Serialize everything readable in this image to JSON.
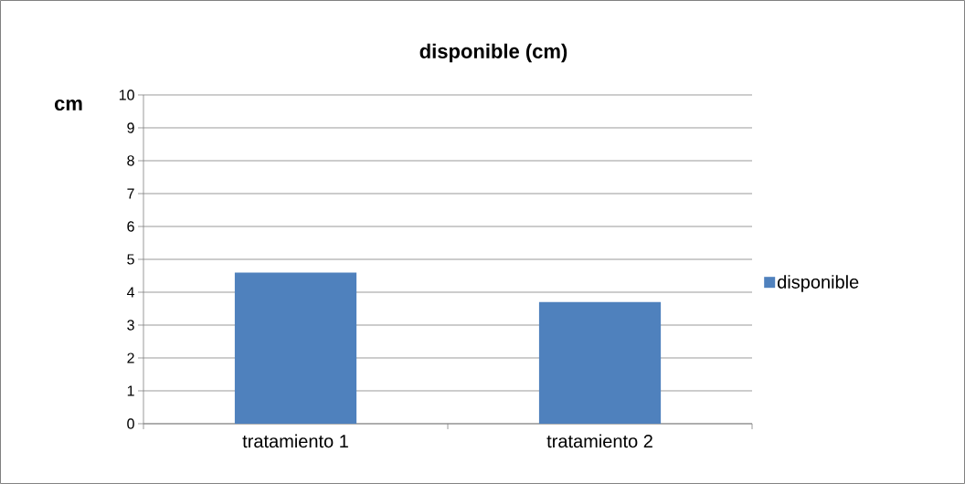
{
  "chart_data": {
    "type": "bar",
    "title": "disponible (cm)",
    "ylabel": "cm",
    "categories": [
      "tratamiento 1",
      "tratamiento 2"
    ],
    "series": [
      {
        "name": "disponible",
        "color": "#4f81bd",
        "values": [
          4.6,
          3.7
        ]
      }
    ],
    "ylim": [
      0,
      10
    ],
    "yticks": [
      0,
      1,
      2,
      3,
      4,
      5,
      6,
      7,
      8,
      9,
      10
    ],
    "grid": "y",
    "legend": "right"
  }
}
